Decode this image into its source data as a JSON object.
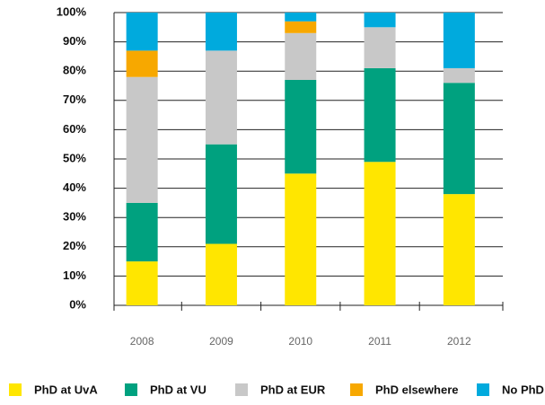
{
  "chart_data": {
    "type": "stacked_bar",
    "categories": [
      "2008",
      "2009",
      "2010",
      "2011",
      "2012"
    ],
    "series": [
      {
        "name": "PhD at UvA",
        "color": "#ffe600",
        "values": [
          15,
          21,
          45,
          49,
          38
        ]
      },
      {
        "name": "PhD at VU",
        "color": "#00a17f",
        "values": [
          20,
          34,
          32,
          32,
          38
        ]
      },
      {
        "name": "PhD at EUR",
        "color": "#c8c8c8",
        "values": [
          43,
          32,
          16,
          14,
          5
        ]
      },
      {
        "name": "PhD elsewhere",
        "color": "#f7a800",
        "values": [
          9,
          0,
          4,
          0,
          0
        ]
      },
      {
        "name": "No PhD",
        "color": "#00aadd",
        "values": [
          13,
          13,
          3,
          5,
          19
        ]
      }
    ],
    "ylim": [
      0,
      100
    ],
    "yticks": [
      {
        "value": 0,
        "label": "0%"
      },
      {
        "value": 10,
        "label": "10%"
      },
      {
        "value": 20,
        "label": "20%"
      },
      {
        "value": 30,
        "label": "30%"
      },
      {
        "value": 40,
        "label": "40%"
      },
      {
        "value": 50,
        "label": "50%"
      },
      {
        "value": 60,
        "label": "60%"
      },
      {
        "value": 70,
        "label": "70%"
      },
      {
        "value": 80,
        "label": "80%"
      },
      {
        "value": 90,
        "label": "90%"
      },
      {
        "value": 100,
        "label": "100%"
      }
    ],
    "grid": true
  }
}
